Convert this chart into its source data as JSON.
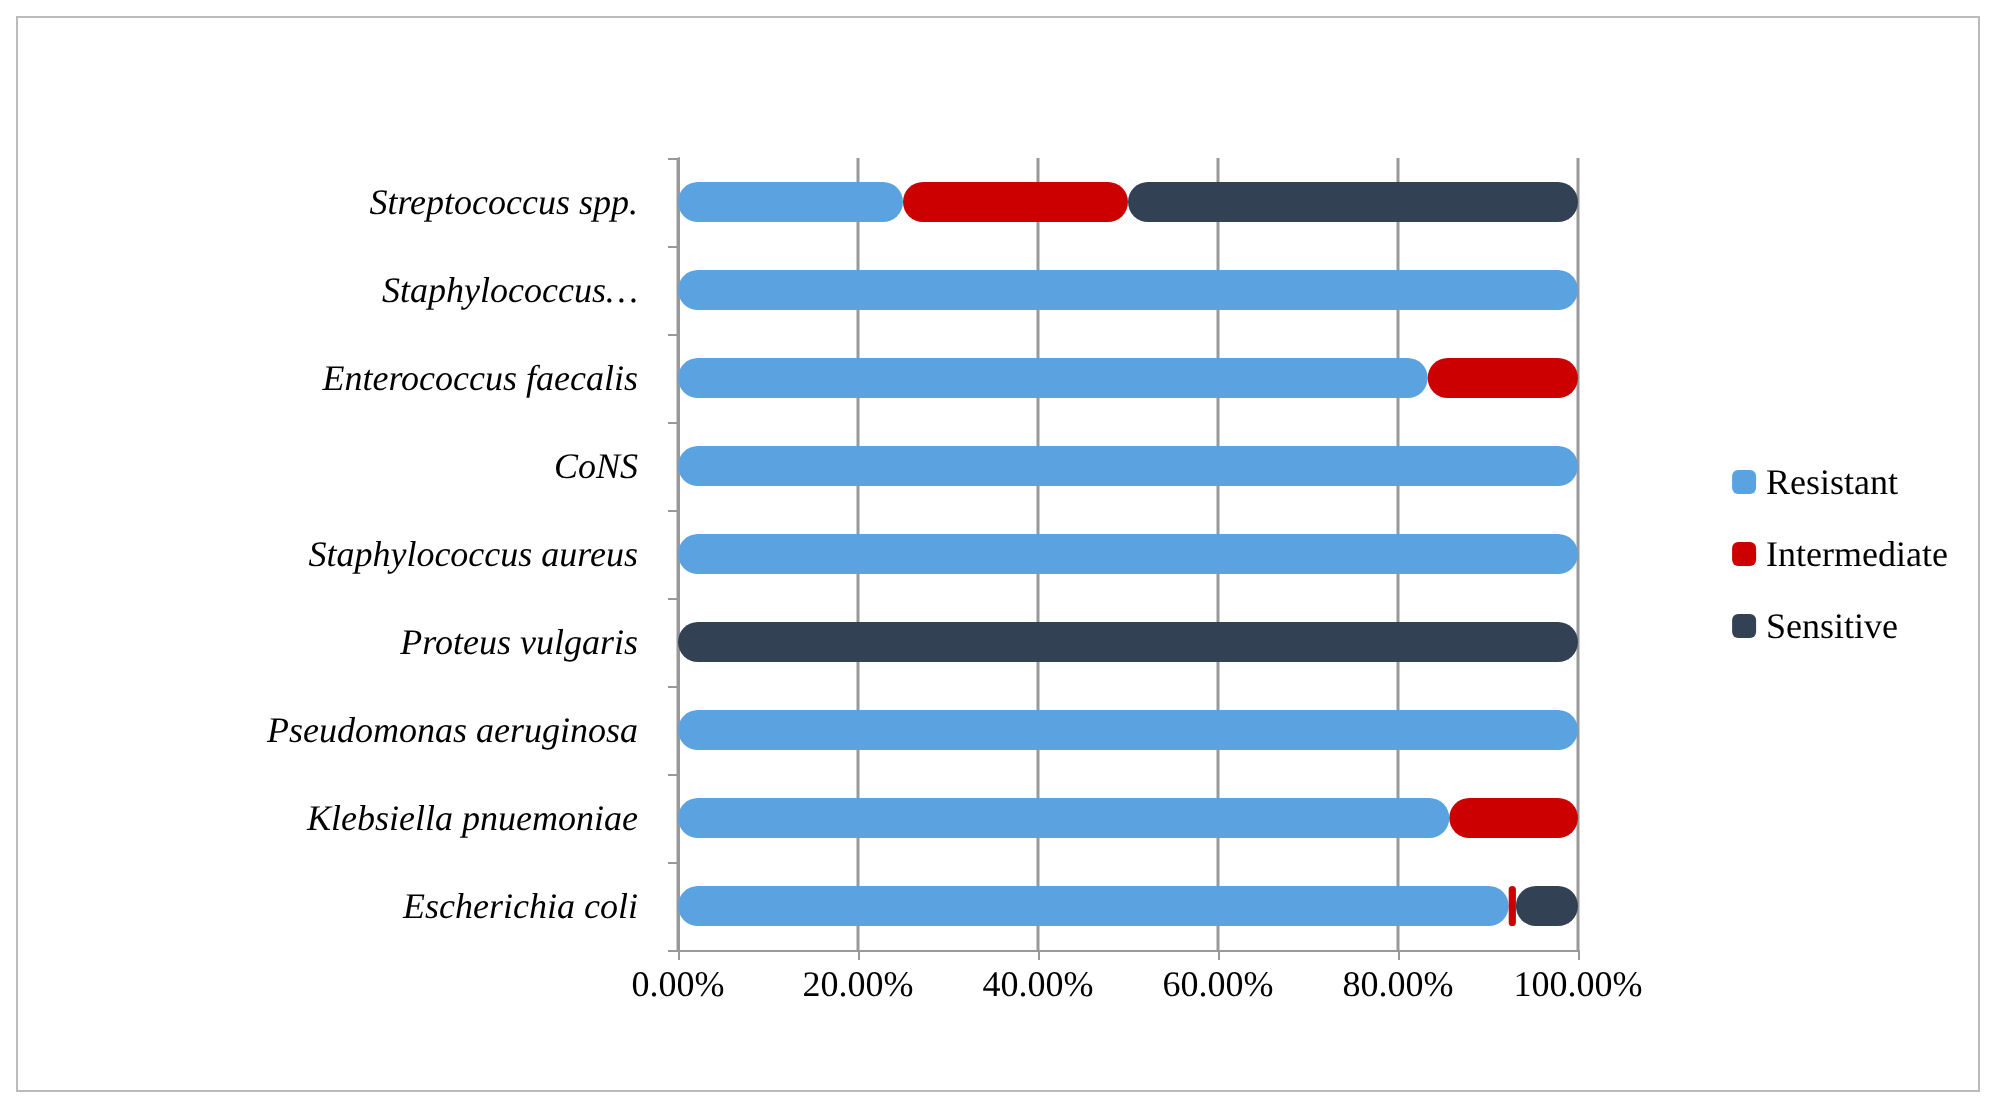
{
  "chart_data": {
    "type": "bar",
    "orientation": "horizontal",
    "stacked": true,
    "categories": [
      "Streptococcus spp.",
      "Staphylococcus…",
      "Enterococcus faecalis",
      "CoNS",
      "Staphylococcus aureus",
      "Proteus vulgaris",
      "Pseudomonas aeruginosa",
      "Klebsiella pnuemoniae",
      "Escherichia coli"
    ],
    "series": [
      {
        "name": "Resistant",
        "color": "#5ba3e0",
        "values": [
          25,
          100,
          83.3,
          100,
          100,
          0,
          100,
          85.7,
          92.3
        ]
      },
      {
        "name": "Intermediate",
        "color": "#cc0000",
        "values": [
          25,
          0,
          16.7,
          0,
          0,
          0,
          0,
          14.3,
          0.8
        ]
      },
      {
        "name": "Sensitive",
        "color": "#334155",
        "values": [
          50,
          0,
          0,
          0,
          0,
          100,
          0,
          0,
          6.9
        ]
      }
    ],
    "xlim": [
      0,
      100
    ],
    "xticks": [
      {
        "value": 0,
        "label": "0.00%"
      },
      {
        "value": 20,
        "label": "20.00%"
      },
      {
        "value": 40,
        "label": "40.00%"
      },
      {
        "value": 60,
        "label": "60.00%"
      },
      {
        "value": 80,
        "label": "80.00%"
      },
      {
        "value": 100,
        "label": "100.00%"
      }
    ],
    "grid": "x",
    "legend": "right"
  }
}
